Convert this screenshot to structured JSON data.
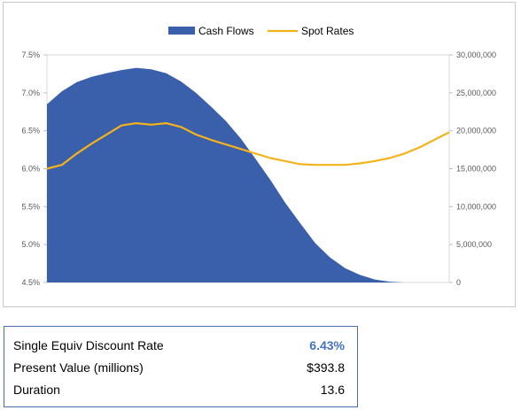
{
  "chart_data": {
    "type": "area+line",
    "legend": [
      "Cash Flows",
      "Spot Rates"
    ],
    "legend_position": "top-center",
    "colors": {
      "cash_flows": "#3a5fab",
      "spot_rates": "#f5b31b"
    },
    "left_axis": {
      "min": 4.5,
      "max": 7.5,
      "ticks": [
        "4.5%",
        "5.0%",
        "5.5%",
        "6.0%",
        "6.5%",
        "7.0%",
        "7.5%"
      ]
    },
    "right_axis": {
      "min": 0,
      "max": 30000000,
      "ticks": [
        "0",
        "5,000,000",
        "10,000,000",
        "15,000,000",
        "20,000,000",
        "25,000,000",
        "30,000,000"
      ]
    },
    "x_points": 28,
    "series": [
      {
        "name": "Cash Flows",
        "axis": "right",
        "values": [
          23500000,
          25200000,
          26400000,
          27100000,
          27600000,
          28000000,
          28300000,
          28100000,
          27600000,
          26500000,
          25000000,
          23200000,
          21300000,
          19000000,
          16300000,
          13500000,
          10500000,
          7800000,
          5200000,
          3300000,
          1900000,
          1000000,
          400000,
          100000,
          0,
          0,
          0,
          0
        ]
      },
      {
        "name": "Spot Rates",
        "axis": "left",
        "values": [
          6.0,
          6.05,
          6.2,
          6.33,
          6.45,
          6.57,
          6.6,
          6.58,
          6.6,
          6.55,
          6.45,
          6.38,
          6.32,
          6.26,
          6.2,
          6.14,
          6.1,
          6.06,
          6.05,
          6.05,
          6.05,
          6.07,
          6.1,
          6.14,
          6.2,
          6.28,
          6.38,
          6.48
        ]
      }
    ]
  },
  "summary": {
    "rows": [
      {
        "label": "Single Equiv Discount Rate",
        "value": "6.43%"
      },
      {
        "label": "Present Value (millions)",
        "value": "$393.8"
      },
      {
        "label": "Duration",
        "value": "13.6"
      }
    ]
  }
}
